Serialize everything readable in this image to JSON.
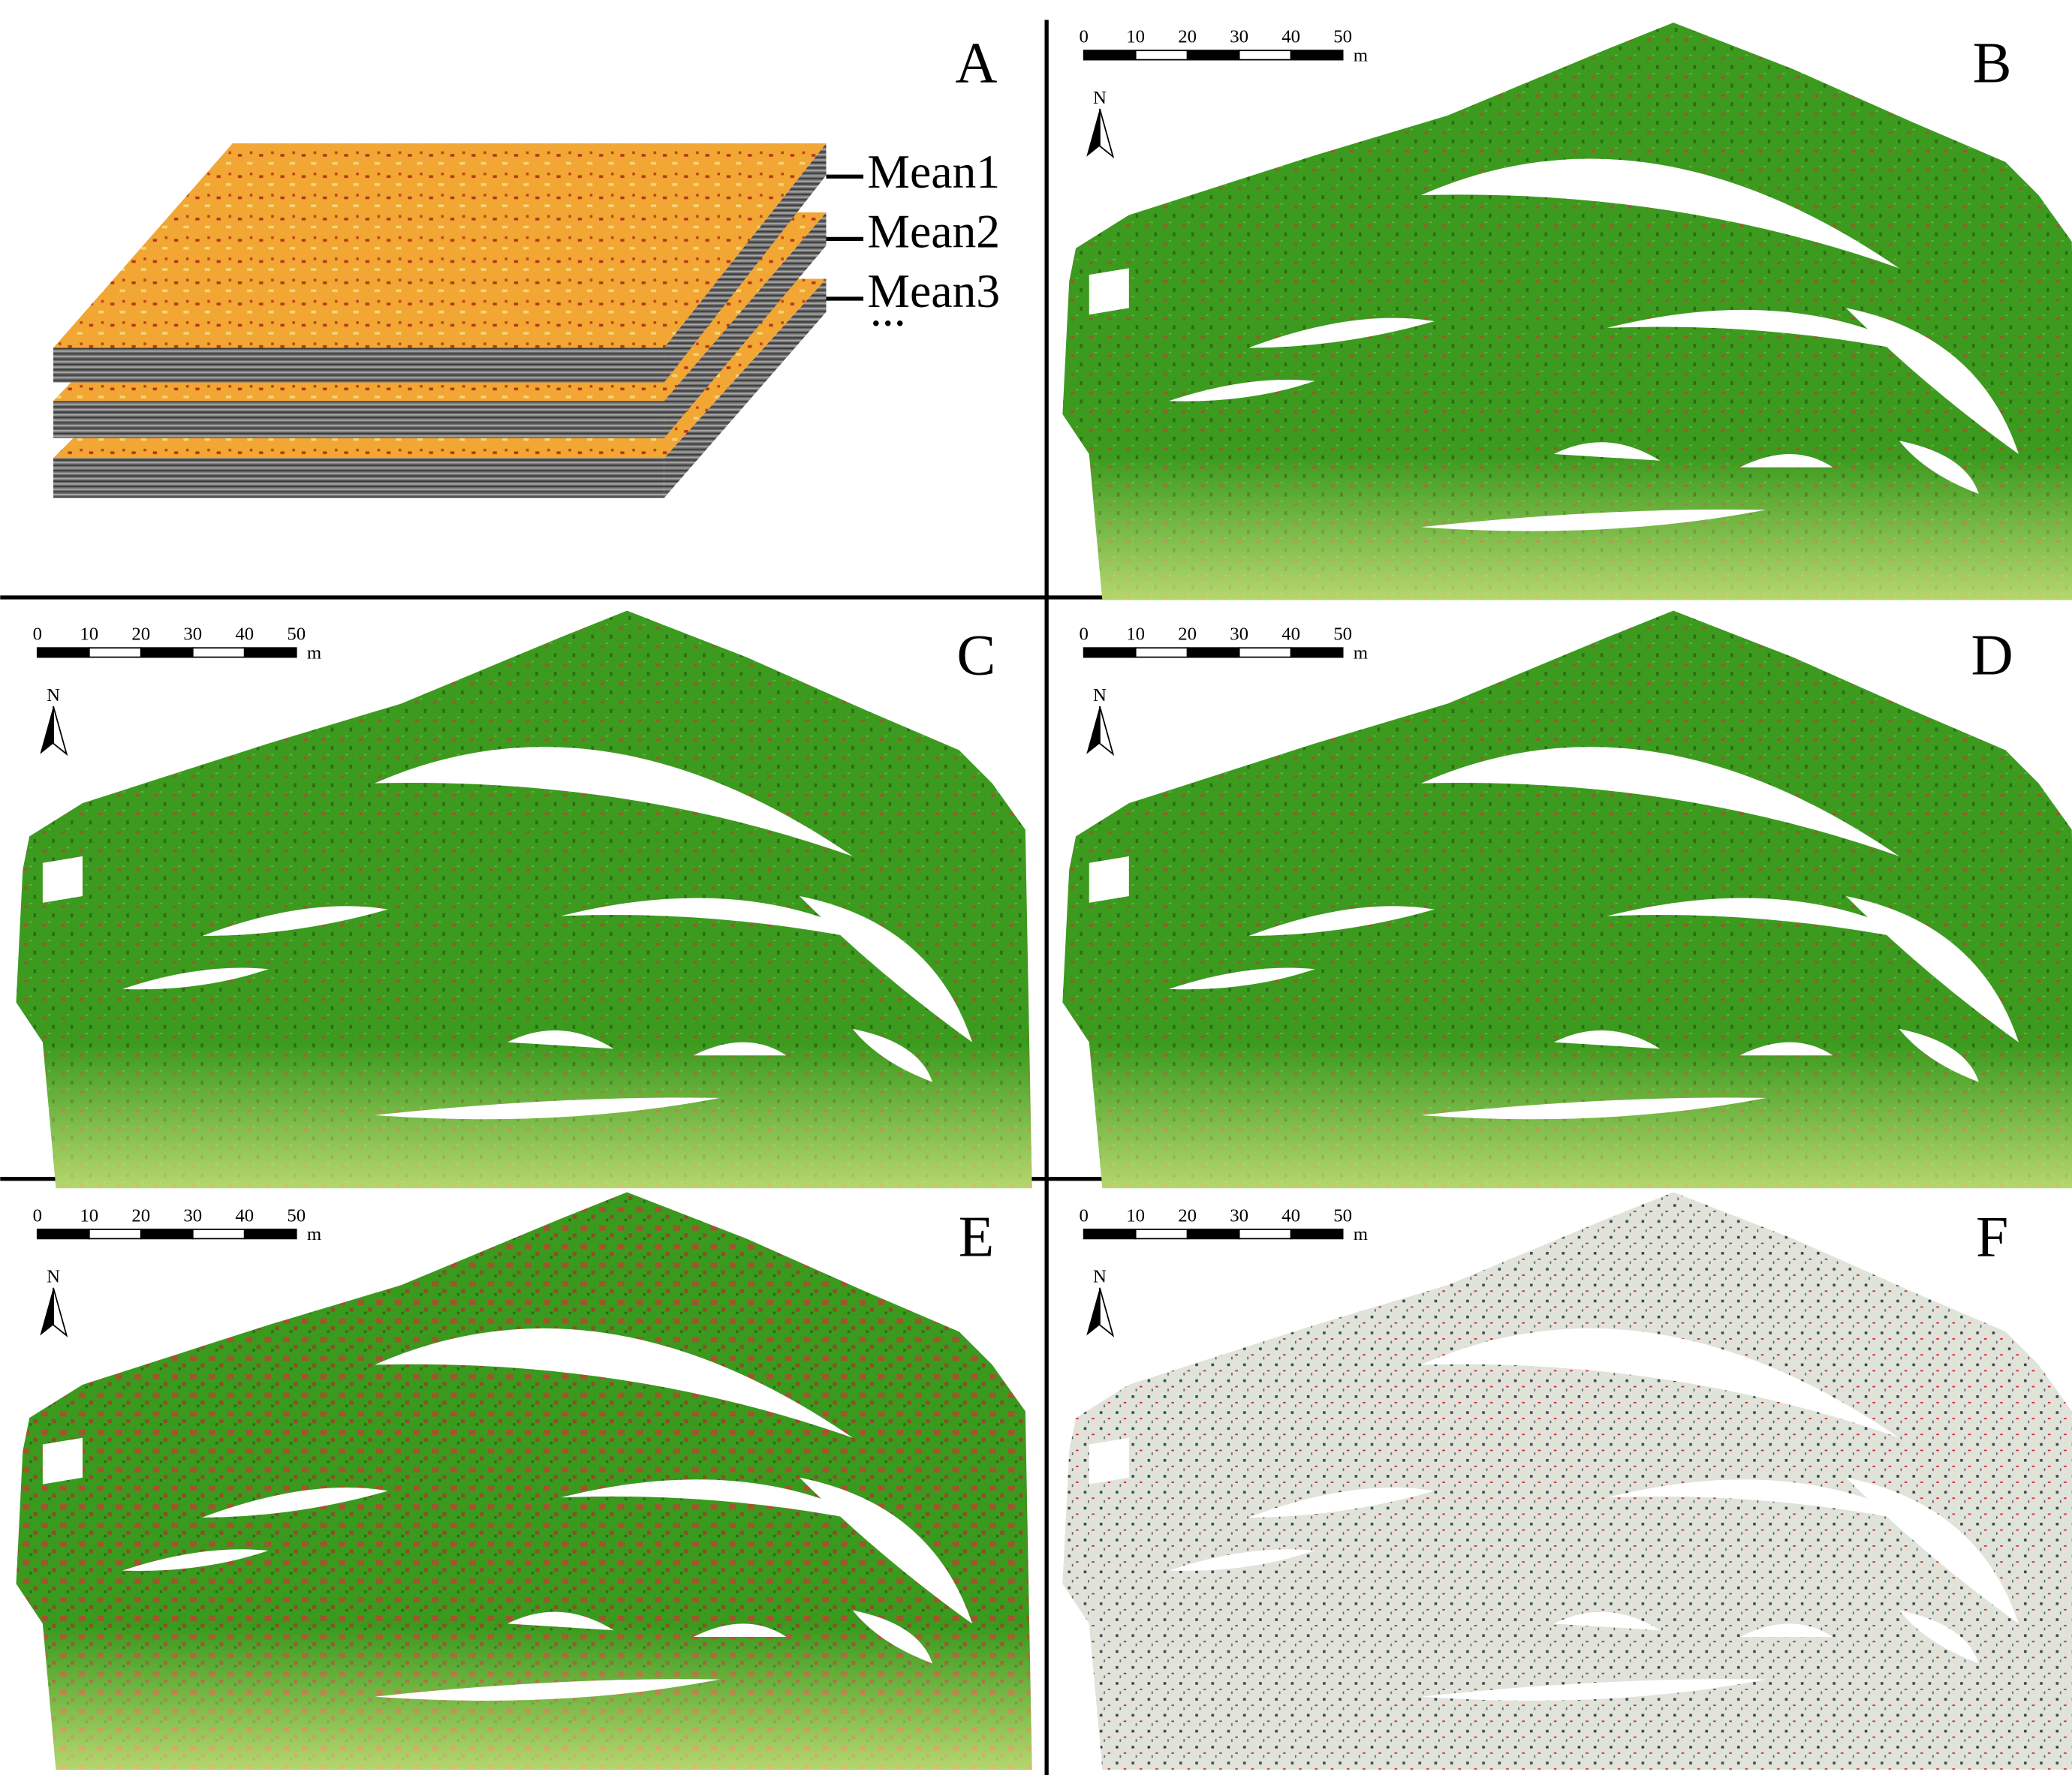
{
  "panels": [
    {
      "label": "A",
      "layers": [
        "Mean1",
        "Mean2",
        "Mean3"
      ],
      "ellipsis": "..."
    },
    {
      "label": "B",
      "scale": {
        "ticks": [
          0,
          10,
          20,
          30,
          40,
          50
        ],
        "unit": "m"
      },
      "north": "N"
    },
    {
      "label": "C",
      "scale": {
        "ticks": [
          0,
          10,
          20,
          30,
          40,
          50
        ],
        "unit": "m"
      },
      "north": "N"
    },
    {
      "label": "D",
      "scale": {
        "ticks": [
          0,
          10,
          20,
          30,
          40,
          50
        ],
        "unit": "m"
      },
      "north": "N"
    },
    {
      "label": "E",
      "scale": {
        "ticks": [
          0,
          10,
          20,
          30,
          40,
          50
        ],
        "unit": "m"
      },
      "north": "N"
    },
    {
      "label": "F",
      "scale": {
        "ticks": [
          0,
          10,
          20,
          30,
          40,
          50
        ],
        "unit": "m"
      },
      "north": "N"
    }
  ]
}
